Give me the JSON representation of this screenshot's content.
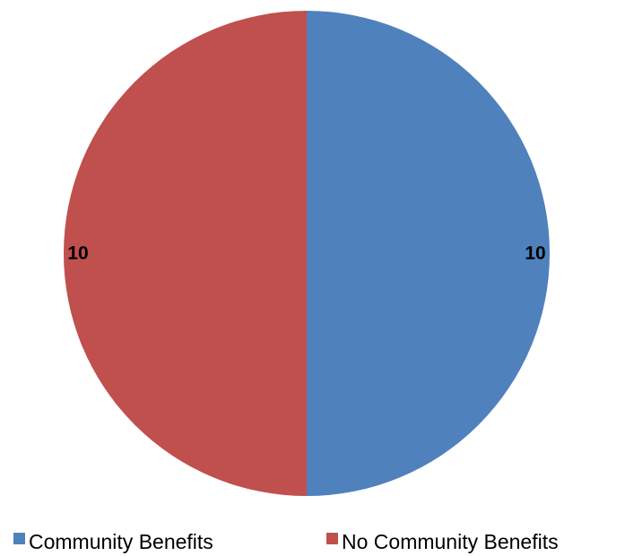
{
  "chart_data": {
    "type": "pie",
    "categories": [
      "Community Benefits",
      "No Community Benefits"
    ],
    "values": [
      10,
      10
    ],
    "colors": [
      "#4f81bd",
      "#c0504d"
    ],
    "data_labels": [
      "10",
      "10"
    ],
    "legend_position": "bottom",
    "start_angle": "12 o'clock",
    "direction": "clockwise"
  }
}
